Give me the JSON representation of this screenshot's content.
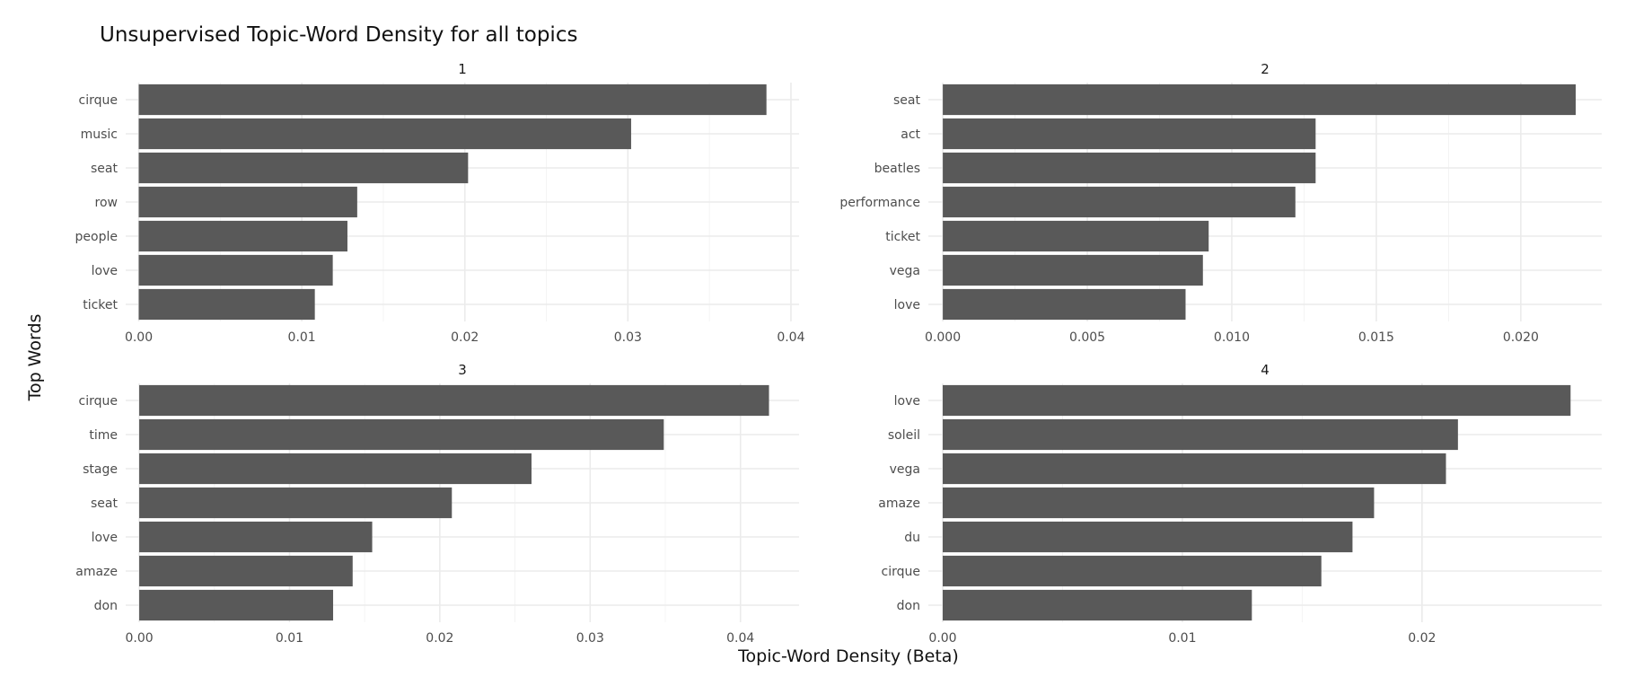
{
  "chart_data": {
    "type": "bar",
    "orientation": "horizontal",
    "title": "Unsupervised Topic-Word Density for all topics",
    "xlabel": "Topic-Word Density (Beta)",
    "ylabel": "Top Words",
    "grid": true,
    "legend": "none",
    "bar_color": "#595959",
    "facets": [
      {
        "name": "1",
        "categories": [
          "cirque",
          "music",
          "seat",
          "row",
          "people",
          "love",
          "ticket"
        ],
        "values": [
          0.0385,
          0.0302,
          0.0202,
          0.0134,
          0.0128,
          0.0119,
          0.0108
        ],
        "xlim": [
          -0.0008,
          0.0405
        ],
        "ticks": [
          0,
          0.01,
          0.02,
          0.03,
          0.04
        ],
        "tick_labels": [
          "0.00",
          "0.01",
          "0.02",
          "0.03",
          "0.04"
        ]
      },
      {
        "name": "2",
        "categories": [
          "seat",
          "act",
          "beatles",
          "performance",
          "ticket",
          "vega",
          "love"
        ],
        "values": [
          0.0219,
          0.0129,
          0.0129,
          0.0122,
          0.0092,
          0.009,
          0.0084
        ],
        "xlim": [
          -0.0005,
          0.0228
        ],
        "ticks": [
          0,
          0.005,
          0.01,
          0.015,
          0.02
        ],
        "tick_labels": [
          "0.000",
          "0.005",
          "0.010",
          "0.015",
          "0.020"
        ]
      },
      {
        "name": "3",
        "categories": [
          "cirque",
          "time",
          "stage",
          "seat",
          "love",
          "amaze",
          "don"
        ],
        "values": [
          0.0419,
          0.0349,
          0.0261,
          0.0208,
          0.0155,
          0.0142,
          0.0129
        ],
        "xlim": [
          -0.0009,
          0.0439
        ],
        "ticks": [
          0,
          0.01,
          0.02,
          0.03,
          0.04
        ],
        "tick_labels": [
          "0.00",
          "0.01",
          "0.02",
          "0.03",
          "0.04"
        ]
      },
      {
        "name": "4",
        "categories": [
          "love",
          "soleil",
          "vega",
          "amaze",
          "du",
          "cirque",
          "don"
        ],
        "values": [
          0.0262,
          0.0215,
          0.021,
          0.018,
          0.0171,
          0.0158,
          0.0129
        ],
        "xlim": [
          -0.0006,
          0.0275
        ],
        "ticks": [
          0,
          0.01,
          0.02
        ],
        "tick_labels": [
          "0.00",
          "0.01",
          "0.02"
        ]
      }
    ]
  }
}
